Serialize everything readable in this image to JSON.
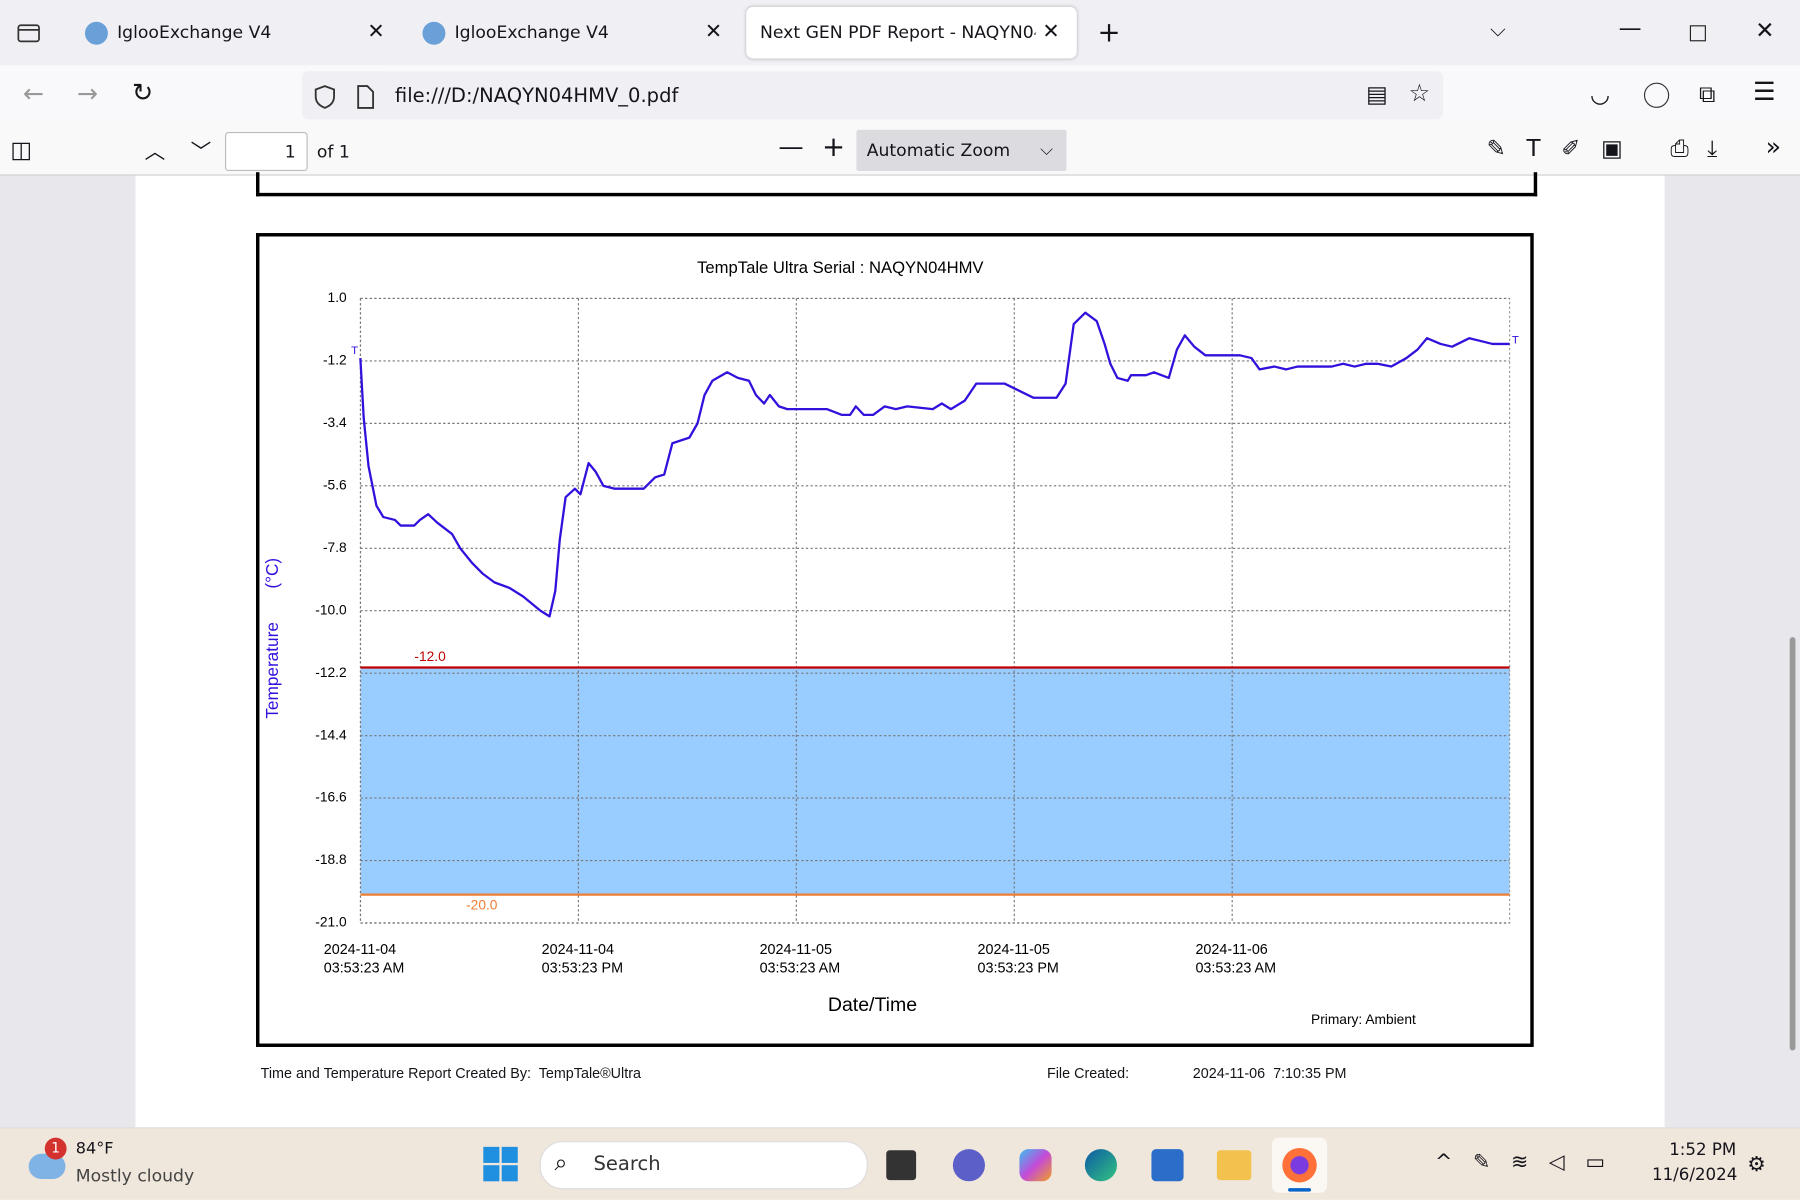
{
  "browser": {
    "tabs": [
      "IglooExchange V4",
      "IglooExchange V4",
      "Next GEN PDF Report - NAQYN04HMV"
    ],
    "url": "file:///D:/NAQYN04HMV_0.pdf"
  },
  "pdf_toolbar": {
    "page": "1",
    "page_count": "of 1",
    "zoom": "Automatic Zoom"
  },
  "chart_data": {
    "type": "line",
    "title": "TempTale Ultra  Serial : NAQYN04HMV",
    "y_label": "Temperature       (°C)",
    "x_label": "Date/Time",
    "trip_markers": [
      "T",
      "T"
    ],
    "x": [
      "2024-11-04T03:53",
      "2024-11-04T04:04",
      "2024-11-04T04:20",
      "2024-11-04T04:46",
      "2024-11-04T05:09",
      "2024-11-04T05:47",
      "2024-11-04T06:06",
      "2024-11-04T06:51",
      "2024-11-04T07:10",
      "2024-11-04T07:37",
      "2024-11-04T08:07",
      "2024-11-04T08:56",
      "2024-11-04T09:23",
      "2024-11-04T10:01",
      "2024-11-04T10:38",
      "2024-11-04T11:16",
      "2024-11-04T12:06",
      "2024-11-04T12:51",
      "2024-11-04T13:48",
      "2024-11-04T14:18",
      "2024-11-04T14:37",
      "2024-11-04T14:52",
      "2024-11-04T15:11",
      "2024-11-04T15:42",
      "2024-11-04T16:00",
      "2024-11-04T16:27",
      "2024-11-04T16:50",
      "2024-11-04T17:16",
      "2024-11-04T17:54",
      "2024-11-04T19:29",
      "2024-11-04T20:07",
      "2024-11-04T20:37",
      "2024-11-04T21:04",
      "2024-11-04T22:00",
      "2024-11-04T22:27",
      "2024-11-04T22:50",
      "2024-11-04T23:16",
      "2024-11-05T00:05",
      "2024-11-05T00:40",
      "2024-11-05T01:17",
      "2024-11-05T01:40",
      "2024-11-05T02:07",
      "2024-11-05T02:26",
      "2024-11-05T02:56",
      "2024-11-05T03:23",
      "2024-11-05T05:35",
      "2024-11-05T06:24",
      "2024-11-05T06:51",
      "2024-11-05T07:10",
      "2024-11-05T07:36",
      "2024-11-05T08:07",
      "2024-11-05T08:45",
      "2024-11-05T09:22",
      "2024-11-05T10:00",
      "2024-11-05T11:24",
      "2024-11-05T11:54",
      "2024-11-05T12:24",
      "2024-11-05T13:10",
      "2024-11-05T13:48",
      "2024-11-05T15:22",
      "2024-11-05T16:00",
      "2024-11-05T16:57",
      "2024-11-05T18:13",
      "2024-11-05T18:43",
      "2024-11-05T19:10",
      "2024-11-05T19:48",
      "2024-11-05T20:26",
      "2024-11-05T20:52",
      "2024-11-05T21:11",
      "2024-11-05T21:34",
      "2024-11-05T22:08",
      "2024-11-05T22:19",
      "2024-11-05T23:09",
      "2024-11-05T23:35",
      "2024-11-06T00:24",
      "2024-11-06T00:51",
      "2024-11-06T01:17",
      "2024-11-06T01:48",
      "2024-11-06T02:25",
      "2024-11-06T04:19",
      "2024-11-06T04:57",
      "2024-11-06T05:24",
      "2024-11-06T06:13",
      "2024-11-06T06:51",
      "2024-11-06T07:29",
      "2024-11-06T08:25",
      "2024-11-06T09:22",
      "2024-11-06T10:00",
      "2024-11-06T10:38",
      "2024-11-06T11:16",
      "2024-11-06T11:54",
      "2024-11-06T12:39",
      "2024-11-06T13:29",
      "2024-11-06T14:06",
      "2024-11-06T14:37",
      "2024-11-06T15:22",
      "2024-11-06T16:00",
      "2024-11-06T16:57",
      "2024-11-06T17:35",
      "2024-11-06T18:13",
      "2024-11-06T19:10"
    ],
    "series": [
      {
        "name": "Primary: Ambient",
        "color": "#3311dd",
        "values": [
          -1.1,
          -3.2,
          -4.9,
          -6.3,
          -6.7,
          -6.8,
          -7.0,
          -7.0,
          -6.8,
          -6.6,
          -6.9,
          -7.3,
          -7.8,
          -8.3,
          -8.7,
          -9.0,
          -9.2,
          -9.5,
          -10.0,
          -10.2,
          -9.3,
          -7.5,
          -6.0,
          -5.7,
          -5.9,
          -4.8,
          -5.1,
          -5.6,
          -5.7,
          -5.7,
          -5.3,
          -5.2,
          -4.1,
          -3.9,
          -3.4,
          -2.4,
          -1.9,
          -1.6,
          -1.8,
          -1.9,
          -2.4,
          -2.7,
          -2.4,
          -2.8,
          -2.9,
          -2.9,
          -3.1,
          -3.1,
          -2.8,
          -3.1,
          -3.1,
          -2.8,
          -2.9,
          -2.8,
          -2.9,
          -2.7,
          -2.9,
          -2.6,
          -2.0,
          -2.0,
          -2.2,
          -2.5,
          -2.5,
          -2.0,
          0.1,
          0.5,
          0.2,
          -0.6,
          -1.3,
          -1.8,
          -1.9,
          -1.7,
          -1.7,
          -1.6,
          -1.8,
          -0.8,
          -0.3,
          -0.7,
          -1.0,
          -1.0,
          -1.1,
          -1.5,
          -1.4,
          -1.5,
          -1.4,
          -1.4,
          -1.4,
          -1.3,
          -1.4,
          -1.3,
          -1.3,
          -1.4,
          -1.1,
          -0.8,
          -0.4,
          -0.6,
          -0.7,
          -0.4,
          -0.5,
          -0.6,
          -0.6
        ]
      }
    ],
    "thresholds": [
      {
        "value": -12,
        "label": "-12.0",
        "color": "#c00000"
      },
      {
        "value": -20,
        "label": "-20.0",
        "color": "#ed7d31"
      }
    ],
    "band_color": "#99ccff",
    "xlim": [
      "2024-11-04T03:53:23",
      "2024-11-06T19:10:00"
    ],
    "xticks": [
      {
        "value": "2024-11-04T03:53:23",
        "label": "2024-11-04\n03:53:23 AM"
      },
      {
        "value": "2024-11-04T15:53:23",
        "label": "2024-11-04\n03:53:23 PM"
      },
      {
        "value": "2024-11-05T03:53:23",
        "label": "2024-11-05\n03:53:23 AM"
      },
      {
        "value": "2024-11-05T15:53:23",
        "label": "2024-11-05\n03:53:23 PM"
      },
      {
        "value": "2024-11-06T03:53:23",
        "label": "2024-11-06\n03:53:23 AM"
      }
    ],
    "ylim": [
      -21,
      1
    ],
    "yticks": [
      {
        "value": 1,
        "label": "1.0"
      },
      -1.2,
      -3.4,
      -5.6,
      -7.8,
      {
        "value": -10,
        "label": "-10.0"
      },
      -12.2,
      -14.4,
      -16.6,
      -18.8,
      {
        "value": -21,
        "label": "-21.0"
      }
    ],
    "grid": true
  },
  "report_footer": {
    "created_by": "Time and Temperature Report Created By:  TempTale®Ultra",
    "file_created_label": "File Created:",
    "file_created": "2024-11-06  7:10:35 PM"
  },
  "taskbar": {
    "badge": "1",
    "temperature": "84°F",
    "weather": "Mostly cloudy",
    "search": "Search",
    "time": "1:52 PM",
    "date": "11/6/2024"
  }
}
